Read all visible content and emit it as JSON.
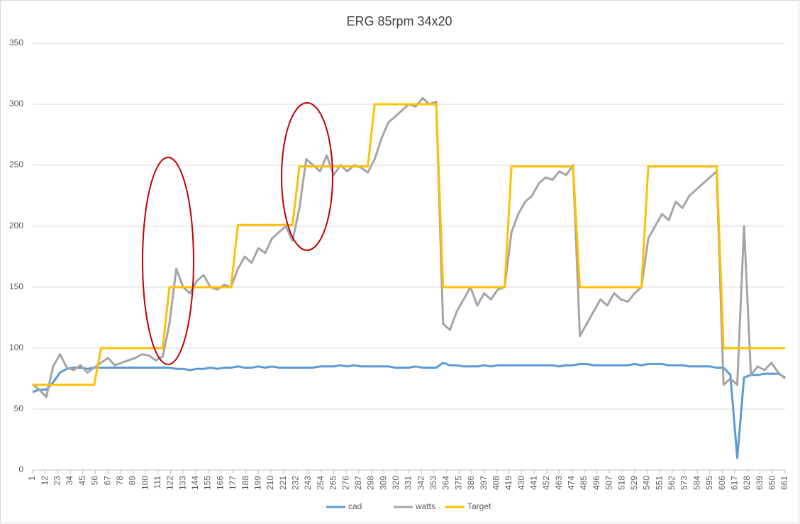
{
  "chart_data": {
    "type": "line",
    "title": "ERG 85rpm 34x20",
    "x": [
      1,
      7,
      13,
      19,
      25,
      31,
      37,
      43,
      49,
      55,
      61,
      67,
      73,
      79,
      85,
      91,
      97,
      103,
      109,
      115,
      121,
      127,
      133,
      139,
      145,
      151,
      157,
      163,
      169,
      175,
      181,
      187,
      193,
      199,
      205,
      211,
      217,
      223,
      229,
      235,
      241,
      247,
      253,
      259,
      265,
      271,
      277,
      283,
      289,
      295,
      301,
      307,
      313,
      319,
      325,
      331,
      337,
      343,
      349,
      355,
      361,
      367,
      373,
      379,
      385,
      391,
      397,
      403,
      409,
      415,
      421,
      427,
      433,
      439,
      445,
      451,
      457,
      463,
      469,
      475,
      481,
      487,
      493,
      499,
      505,
      511,
      517,
      523,
      529,
      535,
      541,
      547,
      553,
      559,
      565,
      571,
      577,
      583,
      589,
      595,
      601,
      607,
      613,
      619,
      625,
      631,
      637,
      643,
      649,
      655,
      661
    ],
    "xlim": [
      1,
      661
    ],
    "xticks": [
      1,
      12,
      23,
      34,
      45,
      56,
      67,
      78,
      89,
      100,
      111,
      122,
      133,
      144,
      155,
      166,
      177,
      188,
      199,
      210,
      221,
      232,
      243,
      254,
      265,
      276,
      287,
      298,
      309,
      320,
      331,
      342,
      353,
      364,
      375,
      386,
      397,
      408,
      419,
      430,
      441,
      452,
      463,
      474,
      485,
      496,
      507,
      518,
      529,
      540,
      551,
      562,
      573,
      584,
      595,
      606,
      617,
      628,
      639,
      650,
      661
    ],
    "ylim": [
      0,
      350
    ],
    "yticks": [
      0,
      50,
      100,
      150,
      200,
      250,
      300,
      350
    ],
    "grid": true,
    "legend": "bottom",
    "series": [
      {
        "name": "cad",
        "color": "#5b9bd5",
        "values": [
          64,
          66,
          66,
          72,
          80,
          83,
          84,
          84,
          83,
          84,
          84,
          84,
          84,
          84,
          84,
          84,
          84,
          84,
          84,
          84,
          84,
          83,
          83,
          82,
          83,
          83,
          84,
          83,
          84,
          84,
          85,
          84,
          84,
          85,
          84,
          85,
          84,
          84,
          84,
          84,
          84,
          84,
          85,
          85,
          85,
          86,
          85,
          86,
          85,
          85,
          85,
          85,
          85,
          84,
          84,
          84,
          85,
          84,
          84,
          84,
          88,
          86,
          86,
          85,
          85,
          85,
          86,
          85,
          86,
          86,
          86,
          86,
          86,
          86,
          86,
          86,
          86,
          85,
          86,
          86,
          87,
          87,
          86,
          86,
          86,
          86,
          86,
          86,
          87,
          86,
          87,
          87,
          87,
          86,
          86,
          86,
          85,
          85,
          85,
          85,
          84,
          84,
          78,
          10,
          76,
          78,
          78,
          79,
          79,
          79,
          76
        ]
      },
      {
        "name": "watts",
        "color": "#a5a5a5",
        "values": [
          70,
          66,
          60,
          85,
          95,
          84,
          82,
          86,
          80,
          84,
          88,
          92,
          86,
          88,
          90,
          92,
          95,
          94,
          90,
          93,
          120,
          165,
          150,
          145,
          155,
          160,
          150,
          148,
          152,
          150,
          165,
          175,
          170,
          182,
          178,
          190,
          195,
          200,
          188,
          215,
          255,
          250,
          245,
          258,
          242,
          250,
          245,
          250,
          248,
          244,
          255,
          272,
          285,
          290,
          295,
          300,
          298,
          305,
          300,
          302,
          120,
          115,
          130,
          140,
          150,
          135,
          145,
          140,
          148,
          150,
          195,
          210,
          220,
          225,
          235,
          240,
          238,
          245,
          242,
          250,
          110,
          120,
          130,
          140,
          135,
          145,
          140,
          138,
          145,
          150,
          190,
          200,
          210,
          205,
          220,
          215,
          225,
          230,
          235,
          240,
          245,
          70,
          75,
          70,
          200,
          78,
          85,
          82,
          88,
          80,
          75
        ]
      },
      {
        "name": "Target",
        "color": "#ffc000",
        "values": [
          70,
          70,
          70,
          70,
          70,
          70,
          70,
          70,
          70,
          70,
          100,
          100,
          100,
          100,
          100,
          100,
          100,
          100,
          100,
          100,
          150,
          150,
          150,
          150,
          150,
          150,
          150,
          150,
          150,
          150,
          201,
          201,
          201,
          201,
          201,
          201,
          201,
          201,
          201,
          249,
          249,
          249,
          249,
          249,
          249,
          249,
          249,
          249,
          249,
          249,
          300,
          300,
          300,
          300,
          300,
          300,
          300,
          300,
          300,
          300,
          150,
          150,
          150,
          150,
          150,
          150,
          150,
          150,
          150,
          150,
          249,
          249,
          249,
          249,
          249,
          249,
          249,
          249,
          249,
          249,
          150,
          150,
          150,
          150,
          150,
          150,
          150,
          150,
          150,
          150,
          249,
          249,
          249,
          249,
          249,
          249,
          249,
          249,
          249,
          249,
          249,
          100,
          100,
          100,
          100,
          100,
          100,
          100,
          100,
          100,
          100
        ]
      }
    ]
  }
}
